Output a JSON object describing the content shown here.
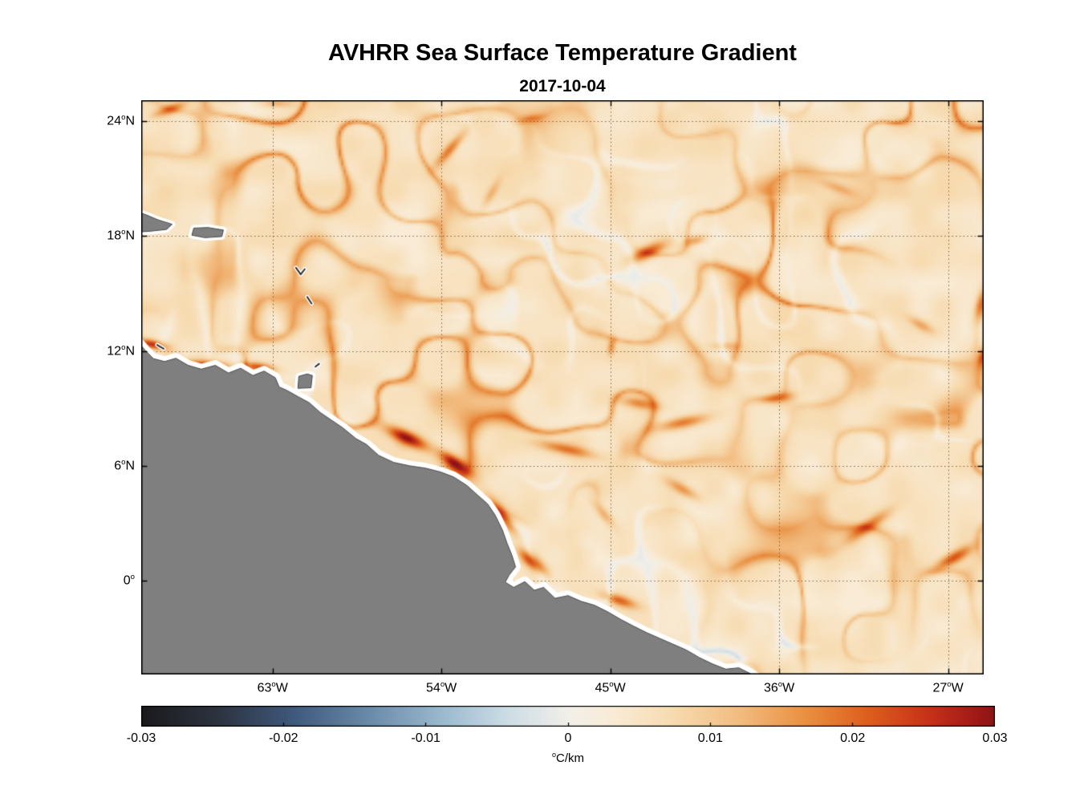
{
  "chart_data": {
    "type": "heatmap",
    "title": "AVHRR Sea Surface Temperature Gradient",
    "subtitle": "2017-10-04",
    "x_axis": {
      "tick_labels": [
        "63°W",
        "54°W",
        "45°W",
        "36°W",
        "27°W"
      ],
      "tick_lons": [
        -63,
        -54,
        -45,
        -36,
        -27
      ],
      "lon_range": [
        -70.0,
        -25.1
      ]
    },
    "y_axis": {
      "tick_labels": [
        "24°N",
        "18°N",
        "12°N",
        "6°N",
        "0°"
      ],
      "tick_lats": [
        24,
        18,
        12,
        6,
        0
      ],
      "lat_range": [
        -4.9,
        25.1
      ]
    },
    "colorbar": {
      "unit": "°C/km",
      "tick_labels": [
        "-0.03",
        "-0.02",
        "-0.01",
        "0",
        "0.01",
        "0.02",
        "0.03"
      ],
      "min": -0.03,
      "max": 0.03,
      "colormap": [
        {
          "t": 0.0,
          "c": "#1a1a1c"
        },
        {
          "t": 0.09,
          "c": "#2c3340"
        },
        {
          "t": 0.18,
          "c": "#3f5a7d"
        },
        {
          "t": 0.27,
          "c": "#6b8cab"
        },
        {
          "t": 0.36,
          "c": "#9fbdd1"
        },
        {
          "t": 0.43,
          "c": "#cddde5"
        },
        {
          "t": 0.5,
          "c": "#f2efe9"
        },
        {
          "t": 0.55,
          "c": "#f9ecd7"
        },
        {
          "t": 0.62,
          "c": "#f7dcb2"
        },
        {
          "t": 0.7,
          "c": "#f2bc80"
        },
        {
          "t": 0.78,
          "c": "#e98f40"
        },
        {
          "t": 0.85,
          "c": "#dd5f1d"
        },
        {
          "t": 0.92,
          "c": "#c83318"
        },
        {
          "t": 0.97,
          "c": "#a81c18"
        },
        {
          "t": 1.0,
          "c": "#8c1414"
        }
      ]
    },
    "background_value": 0.005,
    "high_gradient_features": [
      {
        "lon": -68.5,
        "lat": 24.7,
        "val": 0.018,
        "ang": 20,
        "len": 1.5,
        "wid": 0.4
      },
      {
        "lon": -62.8,
        "lat": 25.0,
        "val": 0.014,
        "ang": 0,
        "len": 1.2,
        "wid": 0.35
      },
      {
        "lon": -53.6,
        "lat": 22.6,
        "val": 0.018,
        "ang": 50,
        "len": 1.8,
        "wid": 0.4
      },
      {
        "lon": -51.4,
        "lat": 20.3,
        "val": 0.012,
        "ang": 60,
        "len": 1.3,
        "wid": 0.35
      },
      {
        "lon": -49.3,
        "lat": 24.2,
        "val": 0.012,
        "ang": 10,
        "len": 1.0,
        "wid": 0.3
      },
      {
        "lon": -43.1,
        "lat": 17.2,
        "val": 0.024,
        "ang": 25,
        "len": 1.6,
        "wid": 0.55
      },
      {
        "lon": -40.6,
        "lat": 17.8,
        "val": 0.016,
        "ang": 15,
        "len": 1.0,
        "wid": 0.4
      },
      {
        "lon": -25.3,
        "lat": 14.5,
        "val": 0.02,
        "ang": 75,
        "len": 1.4,
        "wid": 0.45
      },
      {
        "lon": -69.5,
        "lat": 12.4,
        "val": 0.026,
        "ang": -12,
        "len": 1.2,
        "wid": 0.35
      },
      {
        "lon": -66.6,
        "lat": 11.3,
        "val": 0.026,
        "ang": -5,
        "len": 2.0,
        "wid": 0.4
      },
      {
        "lon": -63.8,
        "lat": 11.2,
        "val": 0.022,
        "ang": -8,
        "len": 1.4,
        "wid": 0.38
      },
      {
        "lon": -55.9,
        "lat": 7.5,
        "val": 0.028,
        "ang": -25,
        "len": 1.8,
        "wid": 0.55
      },
      {
        "lon": -53.4,
        "lat": 6.2,
        "val": 0.026,
        "ang": -35,
        "len": 1.4,
        "wid": 0.5
      },
      {
        "lon": -50.8,
        "lat": 3.4,
        "val": 0.022,
        "ang": -55,
        "len": 1.8,
        "wid": 0.45
      },
      {
        "lon": -49.2,
        "lat": 1.0,
        "val": 0.024,
        "ang": -40,
        "len": 1.5,
        "wid": 0.5
      },
      {
        "lon": -44.6,
        "lat": -1.0,
        "val": 0.02,
        "ang": -18,
        "len": 1.6,
        "wid": 0.45
      },
      {
        "lon": -47.4,
        "lat": 6.9,
        "val": 0.018,
        "ang": -12,
        "len": 2.4,
        "wid": 0.45
      },
      {
        "lon": -41.2,
        "lat": 8.3,
        "val": 0.02,
        "ang": 12,
        "len": 2.2,
        "wid": 0.5
      },
      {
        "lon": -36.2,
        "lat": 9.6,
        "val": 0.016,
        "ang": 8,
        "len": 1.5,
        "wid": 0.4
      },
      {
        "lon": -31.3,
        "lat": 2.9,
        "val": 0.018,
        "ang": 35,
        "len": 2.2,
        "wid": 0.5
      },
      {
        "lon": -26.8,
        "lat": 1.2,
        "val": 0.022,
        "ang": 30,
        "len": 1.8,
        "wid": 0.5
      },
      {
        "lon": -33.0,
        "lat": 20.6,
        "val": 0.012,
        "ang": -20,
        "len": 1.5,
        "wid": 0.4
      },
      {
        "lon": -28.5,
        "lat": 13.4,
        "val": 0.014,
        "ang": -30,
        "len": 1.2,
        "wid": 0.4
      },
      {
        "lon": -39.0,
        "lat": 12.3,
        "val": 0.012,
        "ang": 0,
        "len": 1.2,
        "wid": 0.35
      },
      {
        "lon": -45.0,
        "lat": 12.3,
        "val": 0.015,
        "ang": 80,
        "len": 0.7,
        "wid": 0.3
      },
      {
        "lon": -25.2,
        "lat": 11.8,
        "val": 0.02,
        "ang": 70,
        "len": 0.9,
        "wid": 0.35
      },
      {
        "lon": -41.2,
        "lat": 4.8,
        "val": 0.016,
        "ang": -30,
        "len": 1.5,
        "wid": 0.45
      },
      {
        "lon": -45.4,
        "lat": 3.5,
        "val": 0.014,
        "ang": -50,
        "len": 1.2,
        "wid": 0.4
      },
      {
        "lon": -43.5,
        "lat": 9.3,
        "val": 0.016,
        "ang": -10,
        "len": 1.6,
        "wid": 0.45
      }
    ],
    "map": {
      "land_polygons": {
        "mainland": [
          [
            -70.7,
            12.55
          ],
          [
            -70.15,
            12.45
          ],
          [
            -69.8,
            12.05
          ],
          [
            -69.35,
            11.6
          ],
          [
            -68.75,
            11.45
          ],
          [
            -68.15,
            11.62
          ],
          [
            -67.5,
            11.25
          ],
          [
            -66.8,
            11.05
          ],
          [
            -66.05,
            11.25
          ],
          [
            -65.35,
            10.85
          ],
          [
            -64.7,
            11.1
          ],
          [
            -64.05,
            10.72
          ],
          [
            -63.45,
            10.95
          ],
          [
            -62.85,
            10.6
          ],
          [
            -62.65,
            10.12
          ],
          [
            -62.25,
            9.95
          ],
          [
            -61.65,
            9.62
          ],
          [
            -61.05,
            9.3
          ],
          [
            -60.45,
            8.78
          ],
          [
            -59.85,
            8.38
          ],
          [
            -59.25,
            7.98
          ],
          [
            -58.55,
            7.42
          ],
          [
            -58.0,
            7.12
          ],
          [
            -57.35,
            6.55
          ],
          [
            -56.55,
            6.18
          ],
          [
            -55.7,
            6.0
          ],
          [
            -54.85,
            5.88
          ],
          [
            -54.05,
            5.68
          ],
          [
            -53.35,
            5.42
          ],
          [
            -52.65,
            4.98
          ],
          [
            -52.05,
            4.45
          ],
          [
            -51.55,
            4.02
          ],
          [
            -51.15,
            3.45
          ],
          [
            -50.75,
            2.65
          ],
          [
            -50.5,
            1.95
          ],
          [
            -50.25,
            1.35
          ],
          [
            -50.05,
            0.72
          ],
          [
            -50.4,
            0.28
          ],
          [
            -50.6,
            -0.08
          ],
          [
            -50.15,
            -0.35
          ],
          [
            -49.55,
            -0.05
          ],
          [
            -49.05,
            -0.5
          ],
          [
            -48.55,
            -0.35
          ],
          [
            -47.95,
            -0.92
          ],
          [
            -47.25,
            -0.78
          ],
          [
            -46.55,
            -1.08
          ],
          [
            -45.85,
            -1.28
          ],
          [
            -45.15,
            -1.62
          ],
          [
            -44.45,
            -2.02
          ],
          [
            -43.75,
            -2.38
          ],
          [
            -43.05,
            -2.72
          ],
          [
            -42.35,
            -3.02
          ],
          [
            -41.65,
            -3.32
          ],
          [
            -40.95,
            -3.62
          ],
          [
            -40.25,
            -4.02
          ],
          [
            -39.55,
            -4.35
          ],
          [
            -38.85,
            -4.62
          ],
          [
            -38.15,
            -4.55
          ],
          [
            -37.55,
            -4.85
          ],
          [
            -36.9,
            -5.3
          ],
          [
            -36.3,
            -5.8
          ],
          [
            -70.7,
            -5.8
          ]
        ],
        "hispaniola": [
          [
            -70.7,
            18.2
          ],
          [
            -69.6,
            18.25
          ],
          [
            -68.65,
            18.35
          ],
          [
            -68.35,
            18.62
          ],
          [
            -69.1,
            18.85
          ],
          [
            -69.7,
            19.1
          ],
          [
            -70.7,
            19.45
          ]
        ],
        "puerto_rico": [
          [
            -67.3,
            18.05
          ],
          [
            -66.6,
            17.92
          ],
          [
            -65.7,
            17.98
          ],
          [
            -65.62,
            18.32
          ],
          [
            -66.45,
            18.45
          ],
          [
            -67.2,
            18.42
          ]
        ],
        "trinidad": [
          [
            -61.65,
            10.05
          ],
          [
            -60.95,
            10.08
          ],
          [
            -60.88,
            10.72
          ],
          [
            -61.15,
            10.8
          ],
          [
            -61.6,
            10.68
          ]
        ]
      },
      "small_islands": [
        [
          [
            -61.75,
            16.35
          ],
          [
            -61.5,
            16.0
          ],
          [
            -61.28,
            16.28
          ]
        ],
        [
          [
            -61.15,
            14.82
          ],
          [
            -60.92,
            14.48
          ]
        ],
        [
          [
            -69.15,
            12.32
          ],
          [
            -68.8,
            12.12
          ]
        ],
        [
          [
            -60.72,
            11.18
          ],
          [
            -60.52,
            11.33
          ]
        ]
      ]
    },
    "style": {
      "land_color": "#7f7f7f",
      "land_edge_color": "#4a4a4a",
      "coast_halo_color": "#ffffff",
      "grid_color": "#6b4632",
      "axis_color": "#000000"
    }
  }
}
